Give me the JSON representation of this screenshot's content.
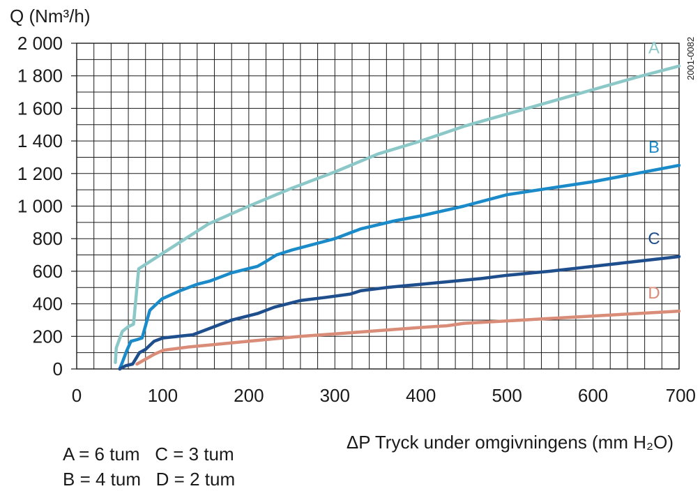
{
  "chart_data": {
    "type": "line",
    "ylabel": "Q (Nm³/h)",
    "xlabel": "ΔP Tryck under omgivningens (mm H₂O)",
    "xlim": [
      0,
      700
    ],
    "ylim": [
      0,
      2000
    ],
    "x_ticks": [
      0,
      100,
      200,
      300,
      400,
      500,
      600,
      700
    ],
    "y_ticks": [
      0,
      200,
      400,
      600,
      800,
      1000,
      1200,
      1400,
      1600,
      1800,
      2000
    ],
    "x_tick_labels": [
      "0",
      "100",
      "200",
      "300",
      "400",
      "500",
      "600",
      "700"
    ],
    "y_tick_labels": [
      "0",
      "200",
      "400",
      "600",
      "800",
      "1 000",
      "1 200",
      "1 400",
      "1 600",
      "1 800",
      "2 000"
    ],
    "grid": true,
    "figure_code": "2001-0082",
    "series": [
      {
        "name": "A",
        "color": "#8cc8c8",
        "points": [
          [
            45,
            40
          ],
          [
            46,
            130
          ],
          [
            53,
            230
          ],
          [
            60,
            260
          ],
          [
            66,
            275
          ],
          [
            70,
            500
          ],
          [
            72,
            615
          ],
          [
            100,
            710
          ],
          [
            153,
            890
          ],
          [
            200,
            1000
          ],
          [
            250,
            1110
          ],
          [
            300,
            1210
          ],
          [
            350,
            1320
          ],
          [
            400,
            1400
          ],
          [
            450,
            1490
          ],
          [
            500,
            1565
          ],
          [
            550,
            1640
          ],
          [
            600,
            1715
          ],
          [
            650,
            1790
          ],
          [
            700,
            1860
          ]
        ]
      },
      {
        "name": "B",
        "color": "#1a8ac8",
        "points": [
          [
            50,
            0
          ],
          [
            53,
            40
          ],
          [
            58,
            110
          ],
          [
            63,
            170
          ],
          [
            70,
            180
          ],
          [
            76,
            190
          ],
          [
            85,
            360
          ],
          [
            99,
            430
          ],
          [
            120,
            480
          ],
          [
            140,
            520
          ],
          [
            155,
            540
          ],
          [
            180,
            590
          ],
          [
            210,
            630
          ],
          [
            220,
            660
          ],
          [
            232,
            700
          ],
          [
            250,
            730
          ],
          [
            300,
            800
          ],
          [
            330,
            860
          ],
          [
            370,
            910
          ],
          [
            400,
            940
          ],
          [
            450,
            1000
          ],
          [
            500,
            1070
          ],
          [
            550,
            1110
          ],
          [
            600,
            1150
          ],
          [
            650,
            1200
          ],
          [
            700,
            1250
          ]
        ]
      },
      {
        "name": "C",
        "color": "#1e4e8c",
        "points": [
          [
            50,
            0
          ],
          [
            57,
            20
          ],
          [
            65,
            30
          ],
          [
            73,
            100
          ],
          [
            80,
            120
          ],
          [
            90,
            170
          ],
          [
            100,
            190
          ],
          [
            135,
            210
          ],
          [
            150,
            240
          ],
          [
            180,
            300
          ],
          [
            210,
            340
          ],
          [
            230,
            380
          ],
          [
            260,
            420
          ],
          [
            290,
            440
          ],
          [
            318,
            460
          ],
          [
            330,
            480
          ],
          [
            360,
            500
          ],
          [
            380,
            510
          ],
          [
            400,
            520
          ],
          [
            450,
            545
          ],
          [
            470,
            555
          ],
          [
            500,
            575
          ],
          [
            550,
            600
          ],
          [
            600,
            630
          ],
          [
            650,
            660
          ],
          [
            700,
            690
          ]
        ]
      },
      {
        "name": "D",
        "color": "#d98c78",
        "points": [
          [
            70,
            30
          ],
          [
            80,
            60
          ],
          [
            90,
            90
          ],
          [
            101,
            115
          ],
          [
            130,
            135
          ],
          [
            160,
            150
          ],
          [
            200,
            170
          ],
          [
            260,
            200
          ],
          [
            300,
            215
          ],
          [
            350,
            235
          ],
          [
            400,
            255
          ],
          [
            430,
            265
          ],
          [
            450,
            280
          ],
          [
            500,
            295
          ],
          [
            550,
            310
          ],
          [
            600,
            325
          ],
          [
            650,
            340
          ],
          [
            700,
            355
          ]
        ]
      }
    ]
  },
  "legend_notes": [
    "A = 6 tum   C = 3 tum",
    "B = 4 tum   D = 2 tum"
  ]
}
